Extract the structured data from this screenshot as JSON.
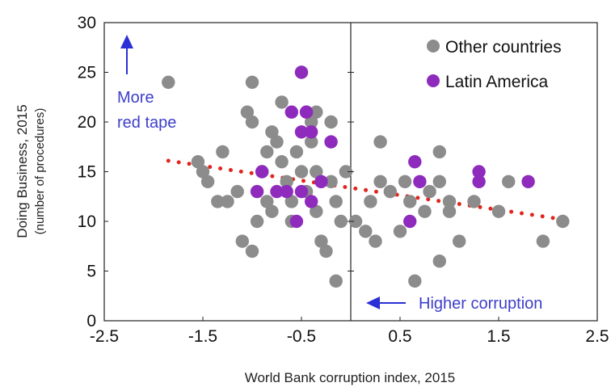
{
  "chart_data": {
    "type": "scatter",
    "xlabel": "World Bank corruption index, 2015",
    "ylabel": "Doing Business, 2015",
    "ylabel_sub": "(number of procedures)",
    "xlim": [
      -2.5,
      2.5
    ],
    "ylim": [
      0,
      30
    ],
    "x_ticks": [
      "-2.5",
      "-1.5",
      "-0.5",
      "0.5",
      "1.5",
      "2.5"
    ],
    "y_ticks": [
      "0",
      "5",
      "10",
      "15",
      "20",
      "25",
      "30"
    ],
    "grid": false,
    "legend_position": "top-right",
    "vertical_reference_line_x": 0,
    "annotations": {
      "up": {
        "line1": "More",
        "line2": "red tape"
      },
      "left": "Higher corruption"
    },
    "trendline": {
      "style": "dotted",
      "color": "#e0261e",
      "x": [
        -1.85,
        2.15
      ],
      "y": [
        16.1,
        10.2
      ]
    },
    "series": [
      {
        "name": "Other countries",
        "color": "#8c8c8c",
        "points": [
          [
            -1.85,
            24
          ],
          [
            -1.55,
            16
          ],
          [
            -1.5,
            15
          ],
          [
            -1.45,
            14
          ],
          [
            -1.35,
            12
          ],
          [
            -1.3,
            17
          ],
          [
            -1.25,
            12
          ],
          [
            -1.15,
            13
          ],
          [
            -1.1,
            8
          ],
          [
            -1.05,
            21
          ],
          [
            -1.0,
            20
          ],
          [
            -1.0,
            24
          ],
          [
            -1.0,
            7
          ],
          [
            -0.95,
            10
          ],
          [
            -0.9,
            15
          ],
          [
            -0.85,
            17
          ],
          [
            -0.85,
            12
          ],
          [
            -0.8,
            19
          ],
          [
            -0.8,
            11
          ],
          [
            -0.75,
            18
          ],
          [
            -0.7,
            22
          ],
          [
            -0.7,
            16
          ],
          [
            -0.65,
            14
          ],
          [
            -0.6,
            12
          ],
          [
            -0.6,
            10
          ],
          [
            -0.55,
            17
          ],
          [
            -0.5,
            15
          ],
          [
            -0.45,
            21
          ],
          [
            -0.45,
            13
          ],
          [
            -0.4,
            20
          ],
          [
            -0.4,
            18
          ],
          [
            -0.35,
            21
          ],
          [
            -0.35,
            15
          ],
          [
            -0.35,
            11
          ],
          [
            -0.3,
            8
          ],
          [
            -0.25,
            7
          ],
          [
            -0.2,
            20
          ],
          [
            -0.2,
            14
          ],
          [
            -0.15,
            12
          ],
          [
            -0.1,
            10
          ],
          [
            -0.05,
            15
          ],
          [
            -0.5,
            25
          ],
          [
            -0.15,
            4
          ],
          [
            0.05,
            10
          ],
          [
            0.15,
            9
          ],
          [
            0.25,
            8
          ],
          [
            0.2,
            12
          ],
          [
            0.3,
            14
          ],
          [
            0.3,
            18
          ],
          [
            0.4,
            13
          ],
          [
            0.5,
            9
          ],
          [
            0.55,
            14
          ],
          [
            0.6,
            12
          ],
          [
            0.65,
            4
          ],
          [
            0.75,
            11
          ],
          [
            0.8,
            13
          ],
          [
            0.9,
            17
          ],
          [
            0.9,
            14
          ],
          [
            0.9,
            6
          ],
          [
            1.0,
            12
          ],
          [
            1.0,
            11
          ],
          [
            1.1,
            8
          ],
          [
            1.25,
            12
          ],
          [
            1.5,
            11
          ],
          [
            1.6,
            14
          ],
          [
            1.95,
            8
          ],
          [
            2.15,
            10
          ]
        ]
      },
      {
        "name": "Latin America",
        "color": "#8e2bbd",
        "points": [
          [
            -0.5,
            25
          ],
          [
            -0.6,
            21
          ],
          [
            -0.45,
            21
          ],
          [
            -0.5,
            19
          ],
          [
            -0.4,
            19
          ],
          [
            -0.2,
            18
          ],
          [
            -0.9,
            15
          ],
          [
            -0.95,
            13
          ],
          [
            -0.75,
            13
          ],
          [
            -0.65,
            13
          ],
          [
            -0.5,
            13
          ],
          [
            -0.4,
            12
          ],
          [
            -0.3,
            14
          ],
          [
            -0.55,
            10
          ],
          [
            0.6,
            10
          ],
          [
            0.65,
            16
          ],
          [
            0.7,
            14
          ],
          [
            1.3,
            15
          ],
          [
            1.3,
            14
          ],
          [
            1.8,
            14
          ]
        ]
      }
    ]
  }
}
